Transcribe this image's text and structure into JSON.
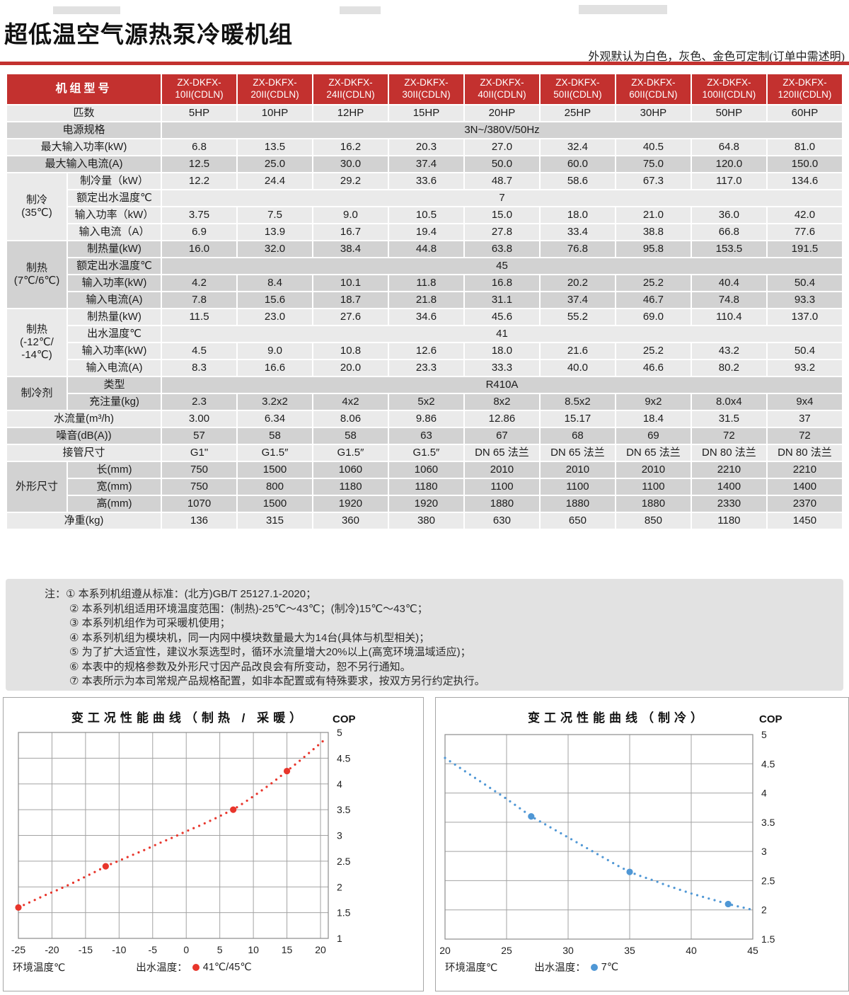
{
  "header": {
    "title": "超低温空气源热泵冷暖机组",
    "subtitle": "外观默认为白色，灰色、金色可定制(订单中需述明)"
  },
  "colors": {
    "accent_red": "#c3312f",
    "band_light": "#eaeaea",
    "band_dark": "#d2d2d2"
  },
  "table": {
    "corner_label": "机组型号",
    "model_prefix": "ZX-DKFX-",
    "model_suffixes": [
      "10II(CDLN)",
      "20II(CDLN)",
      "24II(CDLN)",
      "30II(CDLN)",
      "40II(CDLN)",
      "50II(CDLN)",
      "60II(CDLN)",
      "100II(CDLN)",
      "120II(CDLN)"
    ],
    "rows": [
      {
        "b": "l",
        "lc": 2,
        "label": "匹数",
        "values": [
          "5HP",
          "10HP",
          "12HP",
          "15HP",
          "20HP",
          "25HP",
          "30HP",
          "50HP",
          "60HP"
        ]
      },
      {
        "b": "d",
        "lc": 2,
        "label": "电源规格",
        "span": "3N~/380V/50Hz"
      },
      {
        "b": "l",
        "lc": 2,
        "label": "最大输入功率(kW)",
        "values": [
          "6.8",
          "13.5",
          "16.2",
          "20.3",
          "27.0",
          "32.4",
          "40.5",
          "64.8",
          "81.0"
        ]
      },
      {
        "b": "d",
        "lc": 2,
        "label": "最大输入电流(A)",
        "values": [
          "12.5",
          "25.0",
          "30.0",
          "37.4",
          "50.0",
          "60.0",
          "75.0",
          "120.0",
          "150.0"
        ]
      },
      {
        "b": "l",
        "lc": 1,
        "group": "制冷\n(35℃)",
        "gspan": 4,
        "label": "制冷量（kW）",
        "values": [
          "12.2",
          "24.4",
          "29.2",
          "33.6",
          "48.7",
          "58.6",
          "67.3",
          "117.0",
          "134.6"
        ]
      },
      {
        "b": "l",
        "lc": 1,
        "label": "额定出水温度℃",
        "span": "7"
      },
      {
        "b": "l",
        "lc": 1,
        "label": "输入功率（kW）",
        "values": [
          "3.75",
          "7.5",
          "9.0",
          "10.5",
          "15.0",
          "18.0",
          "21.0",
          "36.0",
          "42.0"
        ]
      },
      {
        "b": "l",
        "lc": 1,
        "label": "输入电流（A）",
        "values": [
          "6.9",
          "13.9",
          "16.7",
          "19.4",
          "27.8",
          "33.4",
          "38.8",
          "66.8",
          "77.6"
        ]
      },
      {
        "b": "d",
        "lc": 1,
        "group": "制热\n(7℃/6℃)",
        "gspan": 4,
        "label": "制热量(kW)",
        "values": [
          "16.0",
          "32.0",
          "38.4",
          "44.8",
          "63.8",
          "76.8",
          "95.8",
          "153.5",
          "191.5"
        ]
      },
      {
        "b": "d",
        "lc": 1,
        "label": "额定出水温度℃",
        "span": "45"
      },
      {
        "b": "d",
        "lc": 1,
        "label": "输入功率(kW)",
        "values": [
          "4.2",
          "8.4",
          "10.1",
          "11.8",
          "16.8",
          "20.2",
          "25.2",
          "40.4",
          "50.4"
        ]
      },
      {
        "b": "d",
        "lc": 1,
        "label": "输入电流(A)",
        "values": [
          "7.8",
          "15.6",
          "18.7",
          "21.8",
          "31.1",
          "37.4",
          "46.7",
          "74.8",
          "93.3"
        ]
      },
      {
        "b": "l",
        "lc": 1,
        "group": "制热\n(-12℃/\n-14℃)",
        "gspan": 4,
        "label": "制热量(kW)",
        "values": [
          "11.5",
          "23.0",
          "27.6",
          "34.6",
          "45.6",
          "55.2",
          "69.0",
          "110.4",
          "137.0"
        ]
      },
      {
        "b": "l",
        "lc": 1,
        "label": "出水温度℃",
        "span": "41"
      },
      {
        "b": "l",
        "lc": 1,
        "label": "输入功率(kW)",
        "values": [
          "4.5",
          "9.0",
          "10.8",
          "12.6",
          "18.0",
          "21.6",
          "25.2",
          "43.2",
          "50.4"
        ]
      },
      {
        "b": "l",
        "lc": 1,
        "label": "输入电流(A)",
        "values": [
          "8.3",
          "16.6",
          "20.0",
          "23.3",
          "33.3",
          "40.0",
          "46.6",
          "80.2",
          "93.2"
        ]
      },
      {
        "b": "d",
        "lc": 1,
        "group": "制冷剂",
        "gspan": 2,
        "label": "类型",
        "span": "R410A"
      },
      {
        "b": "d",
        "lc": 1,
        "label": "充注量(kg)",
        "values": [
          "2.3",
          "3.2x2",
          "4x2",
          "5x2",
          "8x2",
          "8.5x2",
          "9x2",
          "8.0x4",
          "9x4"
        ]
      },
      {
        "b": "l",
        "lc": 2,
        "label": "水流量(m³/h)",
        "values": [
          "3.00",
          "6.34",
          "8.06",
          "9.86",
          "12.86",
          "15.17",
          "18.4",
          "31.5",
          "37"
        ]
      },
      {
        "b": "d",
        "lc": 2,
        "label": "噪音(dB(A))",
        "values": [
          "57",
          "58",
          "58",
          "63",
          "67",
          "68",
          "69",
          "72",
          "72"
        ]
      },
      {
        "b": "l",
        "lc": 2,
        "label": "接管尺寸",
        "values": [
          "G1\"",
          "G1.5″",
          "G1.5″",
          "G1.5″",
          "DN 65 法兰",
          "DN 65 法兰",
          "DN 65 法兰",
          "DN 80 法兰",
          "DN 80 法兰"
        ]
      },
      {
        "b": "d",
        "lc": 1,
        "group": "外形尺寸",
        "gspan": 3,
        "label": "长(mm)",
        "values": [
          "750",
          "1500",
          "1060",
          "1060",
          "2010",
          "2010",
          "2010",
          "2210",
          "2210"
        ]
      },
      {
        "b": "d",
        "lc": 1,
        "label": "宽(mm)",
        "values": [
          "750",
          "800",
          "1180",
          "1180",
          "1100",
          "1100",
          "1100",
          "1400",
          "1400"
        ]
      },
      {
        "b": "d",
        "lc": 1,
        "label": "高(mm)",
        "values": [
          "1070",
          "1500",
          "1920",
          "1920",
          "1880",
          "1880",
          "1880",
          "2330",
          "2370"
        ]
      },
      {
        "b": "l",
        "lc": 2,
        "label": "净重(kg)",
        "values": [
          "136",
          "315",
          "360",
          "380",
          "630",
          "650",
          "850",
          "1180",
          "1450"
        ]
      }
    ]
  },
  "notes": {
    "prefix": "注：",
    "lines": [
      "① 本系列机组遵从标准：(北方)GB/T 25127.1-2020；",
      "② 本系列机组适用环境温度范围：(制热)-25℃～43℃；(制冷)15℃～43℃；",
      "③ 本系列机组作为可采暖机使用；",
      "④ 本系列机组为模块机，同一内网中模块数量最大为14台(具体与机型相关)；",
      "⑤ 为了扩大适宜性，建议水泵选型时，循环水流量增大20%以上(高宽环境温域适应)；",
      "⑥ 本表中的规格参数及外形尺寸因产品改良会有所变动，恕不另行通知。",
      "⑦ 本表所示为本司常规产品规格配置，如非本配置或有特殊要求，按双方另行约定执行。"
    ]
  },
  "chart_data": [
    {
      "type": "line",
      "title": "变工况性能曲线（制热 / 采暖）",
      "cop_label": "COP",
      "xlabel": "环境温度℃",
      "legend_label": "出水温度：",
      "legend_value": "41℃/45℃",
      "series_color": "#e8352b",
      "xlim": [
        -25,
        21
      ],
      "ylim": [
        1,
        5
      ],
      "x_ticks": [
        -25,
        -20,
        -15,
        -10,
        -5,
        0,
        5,
        10,
        15,
        20
      ],
      "y_ticks": [
        1,
        1.5,
        2,
        2.5,
        3,
        3.5,
        4,
        4.5,
        5
      ],
      "grid": true,
      "curve": [
        [
          -25,
          1.6
        ],
        [
          -23,
          1.72
        ],
        [
          -21,
          1.84
        ],
        [
          -19,
          1.95
        ],
        [
          -17,
          2.07
        ],
        [
          -15,
          2.2
        ],
        [
          -13,
          2.33
        ],
        [
          -12,
          2.4
        ],
        [
          -10,
          2.51
        ],
        [
          -8,
          2.62
        ],
        [
          -6,
          2.73
        ],
        [
          -4,
          2.85
        ],
        [
          -2,
          2.96
        ],
        [
          0,
          3.08
        ],
        [
          2,
          3.19
        ],
        [
          4,
          3.31
        ],
        [
          6,
          3.44
        ],
        [
          7,
          3.5
        ],
        [
          9,
          3.67
        ],
        [
          11,
          3.85
        ],
        [
          13,
          4.04
        ],
        [
          15,
          4.25
        ],
        [
          17,
          4.46
        ],
        [
          19,
          4.68
        ],
        [
          20.8,
          4.88
        ]
      ],
      "markers": [
        [
          -25,
          1.6
        ],
        [
          -12,
          2.4
        ],
        [
          7,
          3.5
        ],
        [
          15,
          4.25
        ]
      ]
    },
    {
      "type": "line",
      "title": "变工况性能曲线（制冷）",
      "cop_label": "COP",
      "xlabel": "环境温度℃",
      "legend_label": "出水温度：",
      "legend_value": "7℃",
      "series_color": "#4f97d5",
      "xlim": [
        20,
        45
      ],
      "ylim": [
        1.5,
        5
      ],
      "x_ticks": [
        20,
        25,
        30,
        35,
        40,
        45
      ],
      "y_ticks": [
        1.5,
        2,
        2.5,
        3,
        3.5,
        4,
        4.5,
        5
      ],
      "grid": true,
      "curve": [
        [
          20,
          4.6
        ],
        [
          21,
          4.46
        ],
        [
          22,
          4.32
        ],
        [
          23,
          4.18
        ],
        [
          24,
          4.04
        ],
        [
          25,
          3.9
        ],
        [
          26,
          3.75
        ],
        [
          27,
          3.6
        ],
        [
          28,
          3.48
        ],
        [
          29,
          3.36
        ],
        [
          30,
          3.24
        ],
        [
          31,
          3.12
        ],
        [
          32,
          3.0
        ],
        [
          33,
          2.88
        ],
        [
          34,
          2.76
        ],
        [
          35,
          2.65
        ],
        [
          36,
          2.57
        ],
        [
          37,
          2.5
        ],
        [
          38,
          2.42
        ],
        [
          39,
          2.35
        ],
        [
          40,
          2.28
        ],
        [
          41,
          2.22
        ],
        [
          42,
          2.16
        ],
        [
          43,
          2.1
        ],
        [
          44,
          2.05
        ],
        [
          45,
          2.0
        ]
      ],
      "markers": [
        [
          27,
          3.6
        ],
        [
          35,
          2.65
        ],
        [
          43,
          2.1
        ]
      ]
    }
  ]
}
